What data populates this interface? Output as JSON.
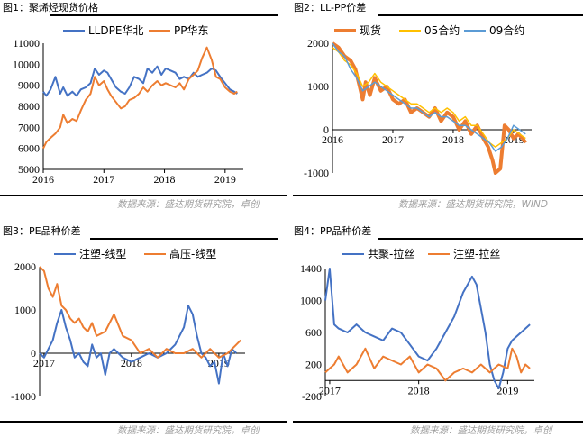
{
  "panels": [
    {
      "title": "图1：聚烯烃现货价格",
      "source": "数据来源：盛达期货研究院，卓创"
    },
    {
      "title": "图2：LL-PP价差",
      "source": "数据来源：盛达期货研究院，WIND"
    },
    {
      "title": "图3：PE品种价差",
      "source": "数据来源：盛达期货研究院，卓创"
    },
    {
      "title": "图4：PP品种价差",
      "source": "数据来源：盛达期货研究院，卓创"
    }
  ],
  "chart_data": [
    {
      "type": "line",
      "title": "图1：聚烯烃现货价格",
      "xlabel": "",
      "ylabel": "",
      "ylim": [
        5000,
        11000
      ],
      "xlim": [
        2016.0,
        2019.3
      ],
      "yticks": [
        "5000",
        "6000",
        "7000",
        "8000",
        "9000",
        "10000",
        "11000"
      ],
      "xticks": [
        {
          "label": "2016",
          "value": 2016.0
        },
        {
          "label": "2017",
          "value": 2017.0
        },
        {
          "label": "2018",
          "value": 2018.0
        },
        {
          "label": "2019",
          "value": 2019.0
        }
      ],
      "legend_position": "top",
      "series": [
        {
          "name": "LLDPE华北",
          "color": "#4472C4",
          "x": [
            2016.0,
            2016.05,
            2016.12,
            2016.2,
            2016.28,
            2016.33,
            2016.4,
            2016.48,
            2016.55,
            2016.62,
            2016.7,
            2016.78,
            2016.85,
            2016.92,
            2017.0,
            2017.06,
            2017.12,
            2017.2,
            2017.28,
            2017.35,
            2017.42,
            2017.5,
            2017.58,
            2017.65,
            2017.72,
            2017.8,
            2017.88,
            2017.95,
            2018.02,
            2018.1,
            2018.18,
            2018.25,
            2018.32,
            2018.4,
            2018.48,
            2018.55,
            2018.62,
            2018.7,
            2018.78,
            2018.85,
            2018.92,
            2019.0,
            2019.08,
            2019.15,
            2019.2
          ],
          "values": [
            8700,
            8500,
            8800,
            9400,
            8600,
            8900,
            8500,
            8700,
            8500,
            8800,
            8900,
            9100,
            9800,
            9500,
            9700,
            9600,
            9300,
            8900,
            8700,
            8600,
            8900,
            9400,
            9300,
            9100,
            9800,
            9600,
            9900,
            9500,
            9800,
            9700,
            9600,
            9300,
            9400,
            9300,
            9600,
            9400,
            9500,
            9600,
            9800,
            9700,
            9400,
            9100,
            8800,
            8700,
            8600
          ]
        },
        {
          "name": "PP华东",
          "color": "#ED7D31",
          "x": [
            2016.0,
            2016.05,
            2016.12,
            2016.2,
            2016.28,
            2016.33,
            2016.4,
            2016.48,
            2016.55,
            2016.62,
            2016.7,
            2016.78,
            2016.85,
            2016.92,
            2017.0,
            2017.06,
            2017.12,
            2017.2,
            2017.28,
            2017.35,
            2017.42,
            2017.5,
            2017.58,
            2017.65,
            2017.72,
            2017.8,
            2017.88,
            2017.95,
            2018.02,
            2018.1,
            2018.18,
            2018.25,
            2018.32,
            2018.4,
            2018.48,
            2018.55,
            2018.62,
            2018.7,
            2018.78,
            2018.85,
            2018.92,
            2019.0,
            2019.08,
            2019.15,
            2019.2
          ],
          "values": [
            6000,
            6300,
            6500,
            6700,
            7000,
            7600,
            7200,
            7400,
            7300,
            7800,
            8300,
            8600,
            9400,
            9000,
            9200,
            8800,
            8500,
            8200,
            7900,
            8000,
            8300,
            8400,
            8600,
            8900,
            8700,
            9000,
            9200,
            9000,
            9100,
            9000,
            8900,
            9100,
            8800,
            9300,
            9500,
            9700,
            10300,
            10800,
            10200,
            9400,
            9300,
            8900,
            8700,
            8600,
            8700
          ]
        }
      ]
    },
    {
      "type": "line",
      "title": "图2：LL-PP价差",
      "xlabel": "",
      "ylabel": "",
      "ylim": [
        -1000,
        2000
      ],
      "xlim": [
        2016.0,
        2019.3
      ],
      "yticks": [
        "-1000",
        "0",
        "1000",
        "2000"
      ],
      "xticks": [
        {
          "label": "2016",
          "value": 2016.0
        },
        {
          "label": "2017",
          "value": 2017.0
        },
        {
          "label": "2018",
          "value": 2018.0
        },
        {
          "label": "2019",
          "value": 2019.0
        }
      ],
      "legend_position": "top",
      "series": [
        {
          "name": "现货",
          "color": "#ED7D31",
          "x": [
            2016.0,
            2016.1,
            2016.2,
            2016.3,
            2016.38,
            2016.45,
            2016.5,
            2016.55,
            2016.62,
            2016.7,
            2016.8,
            2016.9,
            2017.0,
            2017.1,
            2017.2,
            2017.3,
            2017.4,
            2017.5,
            2017.6,
            2017.7,
            2017.8,
            2017.9,
            2018.0,
            2018.1,
            2018.2,
            2018.3,
            2018.4,
            2018.5,
            2018.58,
            2018.65,
            2018.7,
            2018.78,
            2018.85,
            2018.92,
            2019.0,
            2019.08,
            2019.15,
            2019.2
          ],
          "values": [
            2000,
            1900,
            1700,
            1600,
            1400,
            1000,
            700,
            1100,
            800,
            1200,
            900,
            1000,
            700,
            600,
            700,
            400,
            500,
            400,
            300,
            500,
            200,
            400,
            300,
            0,
            200,
            -100,
            100,
            -200,
            -400,
            -700,
            -1000,
            -900,
            100,
            0,
            -200,
            -100,
            -200,
            -300
          ]
        },
        {
          "name": "05合约",
          "color": "#FFC000",
          "x": [
            2016.0,
            2016.1,
            2016.2,
            2016.3,
            2016.4,
            2016.5,
            2016.6,
            2016.7,
            2016.8,
            2016.9,
            2017.0,
            2017.1,
            2017.2,
            2017.3,
            2017.4,
            2017.5,
            2017.6,
            2017.7,
            2017.8,
            2017.9,
            2018.0,
            2018.1,
            2018.2,
            2018.3,
            2018.4,
            2018.5,
            2018.6,
            2018.7,
            2018.8,
            2018.9,
            2019.0,
            2019.1,
            2019.2
          ],
          "values": [
            1900,
            1800,
            1600,
            1500,
            1300,
            1000,
            1100,
            1300,
            1100,
            1000,
            900,
            800,
            700,
            600,
            600,
            500,
            400,
            500,
            400,
            500,
            400,
            200,
            300,
            100,
            100,
            -100,
            -300,
            -400,
            -300,
            -200,
            0,
            -100,
            -200
          ]
        },
        {
          "name": "09合约",
          "color": "#5B9BD5",
          "x": [
            2016.0,
            2016.1,
            2016.2,
            2016.3,
            2016.4,
            2016.5,
            2016.6,
            2016.7,
            2016.8,
            2016.9,
            2017.0,
            2017.1,
            2017.2,
            2017.3,
            2017.4,
            2017.5,
            2017.6,
            2017.7,
            2017.8,
            2017.9,
            2018.0,
            2018.1,
            2018.2,
            2018.3,
            2018.4,
            2018.5,
            2018.6,
            2018.7,
            2018.8,
            2018.9,
            2019.0,
            2019.1,
            2019.2
          ],
          "values": [
            2000,
            1800,
            1700,
            1400,
            1200,
            900,
            1000,
            1100,
            1000,
            900,
            800,
            700,
            600,
            500,
            500,
            400,
            300,
            400,
            300,
            300,
            200,
            100,
            100,
            0,
            -100,
            -200,
            -300,
            -500,
            -400,
            -200,
            100,
            0,
            -100
          ]
        }
      ]
    },
    {
      "type": "line",
      "title": "图3：PE品种价差",
      "xlabel": "",
      "ylabel": "",
      "ylim": [
        -1000,
        2000
      ],
      "xlim": [
        2016.95,
        2019.3
      ],
      "yticks": [
        "-1000",
        "0",
        "1000",
        "2000"
      ],
      "xticks": [
        {
          "label": "2017",
          "value": 2017.0
        },
        {
          "label": "2018",
          "value": 2018.0
        },
        {
          "label": "2019",
          "value": 2019.0
        }
      ],
      "legend_position": "top",
      "series": [
        {
          "name": "注塑-线型",
          "color": "#4472C4",
          "x": [
            2016.95,
            2017.0,
            2017.05,
            2017.1,
            2017.15,
            2017.2,
            2017.25,
            2017.3,
            2017.35,
            2017.4,
            2017.45,
            2017.5,
            2017.55,
            2017.6,
            2017.65,
            2017.7,
            2017.75,
            2017.8,
            2017.9,
            2018.0,
            2018.1,
            2018.2,
            2018.3,
            2018.4,
            2018.5,
            2018.6,
            2018.65,
            2018.7,
            2018.75,
            2018.8,
            2018.85,
            2018.9,
            2018.95,
            2019.0,
            2019.05,
            2019.1,
            2019.15,
            2019.2
          ],
          "values": [
            0,
            -100,
            100,
            300,
            700,
            1000,
            600,
            300,
            -100,
            0,
            -200,
            -300,
            200,
            -100,
            0,
            -500,
            0,
            100,
            -100,
            -200,
            -100,
            0,
            -100,
            0,
            200,
            600,
            1100,
            900,
            400,
            0,
            -100,
            -300,
            -200,
            -700,
            0,
            -300,
            100,
            0
          ]
        },
        {
          "name": "高压-线型",
          "color": "#ED7D31",
          "x": [
            2016.95,
            2017.0,
            2017.05,
            2017.1,
            2017.15,
            2017.2,
            2017.25,
            2017.3,
            2017.35,
            2017.4,
            2017.45,
            2017.5,
            2017.55,
            2017.6,
            2017.7,
            2017.8,
            2017.9,
            2018.0,
            2018.1,
            2018.2,
            2018.3,
            2018.4,
            2018.5,
            2018.6,
            2018.7,
            2018.8,
            2018.9,
            2019.0,
            2019.1,
            2019.2,
            2019.25
          ],
          "values": [
            2000,
            1900,
            1500,
            1300,
            1600,
            1100,
            1000,
            800,
            700,
            800,
            600,
            500,
            700,
            400,
            500,
            900,
            400,
            300,
            0,
            100,
            -100,
            100,
            0,
            0,
            100,
            -100,
            100,
            -100,
            0,
            200,
            300
          ]
        }
      ]
    },
    {
      "type": "line",
      "title": "图4：PP品种价差",
      "xlabel": "",
      "ylabel": "",
      "ylim": [
        -200,
        1400
      ],
      "xlim": [
        2016.95,
        2019.3
      ],
      "yticks": [
        "-200",
        "200",
        "600",
        "1000",
        "1400"
      ],
      "xticks": [
        {
          "label": "2017",
          "value": 2017.0
        },
        {
          "label": "2018",
          "value": 2018.0
        },
        {
          "label": "2019",
          "value": 2019.0
        }
      ],
      "legend_position": "top",
      "series": [
        {
          "name": "共聚-拉丝",
          "color": "#4472C4",
          "x": [
            2016.95,
            2017.0,
            2017.05,
            2017.1,
            2017.2,
            2017.3,
            2017.4,
            2017.5,
            2017.6,
            2017.7,
            2017.8,
            2017.9,
            2018.0,
            2018.1,
            2018.2,
            2018.3,
            2018.4,
            2018.5,
            2018.55,
            2018.6,
            2018.65,
            2018.7,
            2018.75,
            2018.8,
            2018.85,
            2018.9,
            2018.95,
            2019.0,
            2019.05,
            2019.1,
            2019.15,
            2019.2,
            2019.25
          ],
          "values": [
            1000,
            1400,
            700,
            650,
            600,
            700,
            600,
            550,
            500,
            650,
            600,
            450,
            300,
            250,
            400,
            600,
            800,
            1100,
            1200,
            1300,
            1200,
            900,
            600,
            200,
            0,
            -100,
            100,
            400,
            500,
            550,
            600,
            650,
            700
          ]
        },
        {
          "name": "注塑-拉丝",
          "color": "#ED7D31",
          "x": [
            2016.95,
            2017.0,
            2017.05,
            2017.1,
            2017.2,
            2017.3,
            2017.4,
            2017.5,
            2017.6,
            2017.7,
            2017.8,
            2017.9,
            2018.0,
            2018.1,
            2018.2,
            2018.3,
            2018.4,
            2018.5,
            2018.6,
            2018.7,
            2018.8,
            2018.9,
            2019.0,
            2019.05,
            2019.1,
            2019.15,
            2019.2,
            2019.25
          ],
          "values": [
            100,
            150,
            200,
            300,
            100,
            200,
            400,
            150,
            300,
            250,
            200,
            300,
            100,
            200,
            150,
            0,
            100,
            150,
            100,
            200,
            100,
            200,
            150,
            400,
            300,
            100,
            200,
            150
          ]
        }
      ]
    }
  ]
}
